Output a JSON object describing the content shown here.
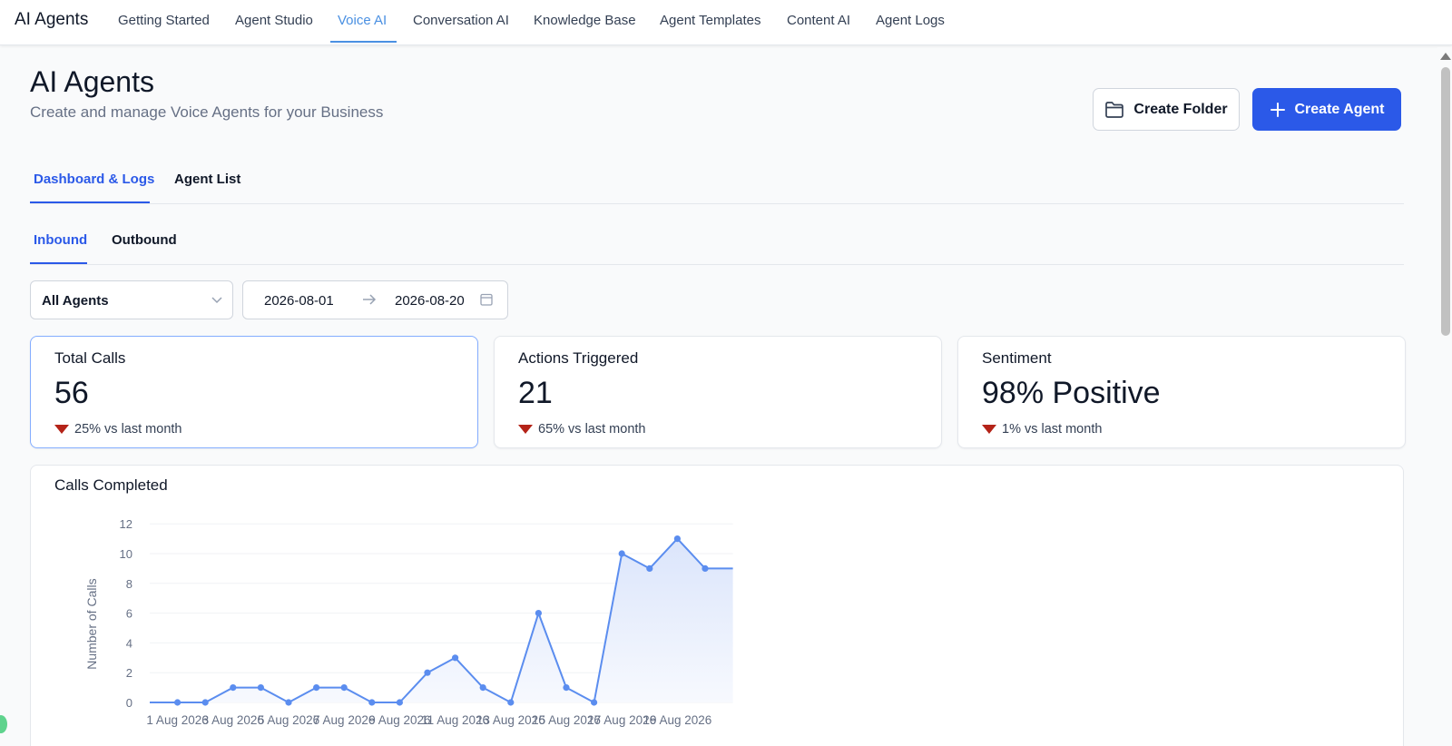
{
  "nav": {
    "brand": "AI Agents",
    "items": [
      {
        "label": "Getting Started",
        "active": false
      },
      {
        "label": "Agent Studio",
        "active": false
      },
      {
        "label": "Voice AI",
        "active": true
      },
      {
        "label": "Conversation AI",
        "active": false
      },
      {
        "label": "Knowledge Base",
        "active": false
      },
      {
        "label": "Agent Templates",
        "active": false
      },
      {
        "label": "Content AI",
        "active": false
      },
      {
        "label": "Agent Logs",
        "active": false
      }
    ]
  },
  "header": {
    "title": "AI Agents",
    "subtitle": "Create and manage Voice Agents for your Business",
    "create_folder_label": "Create Folder",
    "create_agent_label": "Create Agent"
  },
  "tabs": {
    "primary": [
      {
        "label": "Dashboard & Logs",
        "active": true
      },
      {
        "label": "Agent List",
        "active": false
      }
    ],
    "secondary": [
      {
        "label": "Inbound",
        "active": true
      },
      {
        "label": "Outbound",
        "active": false
      }
    ]
  },
  "filters": {
    "agent_select": "All Agents",
    "date_start": "2026-08-01",
    "date_end": "2026-08-20"
  },
  "stats": [
    {
      "label": "Total Calls",
      "value": "56",
      "delta": "25% vs last month",
      "trend": "down",
      "selected": true
    },
    {
      "label": "Actions Triggered",
      "value": "21",
      "delta": "65% vs last month",
      "trend": "down",
      "selected": false
    },
    {
      "label": "Sentiment",
      "value": "98% Positive",
      "delta": "1% vs last month",
      "trend": "down",
      "selected": false
    }
  ],
  "colors": {
    "accent": "#2b59e8",
    "nav_active": "#4a90e2",
    "trend_down": "#b42318",
    "series_line": "#5b8def"
  },
  "chart_data": {
    "type": "area",
    "title": "Calls Completed",
    "xlabel": "",
    "ylabel": "Number of Calls",
    "ylim": [
      0,
      12
    ],
    "yticks": [
      0,
      2,
      4,
      6,
      8,
      10,
      12
    ],
    "grid": true,
    "x": [
      "31 Jul 2026",
      "1 Aug 2026",
      "2 Aug 2026",
      "3 Aug 2026",
      "4 Aug 2026",
      "5 Aug 2026",
      "6 Aug 2026",
      "7 Aug 2026",
      "8 Aug 2026",
      "9 Aug 2026",
      "10 Aug 2026",
      "11 Aug 2026",
      "12 Aug 2026",
      "13 Aug 2026",
      "14 Aug 2026",
      "15 Aug 2026",
      "16 Aug 2026",
      "17 Aug 2026",
      "18 Aug 2026",
      "19 Aug 2026",
      "20 Aug 2026",
      "21 Aug 2026"
    ],
    "xtick_labels": [
      "1 Aug 2026",
      "3 Aug 2026",
      "5 Aug 2026",
      "7 Aug 2026",
      "9 Aug 2026",
      "11 Aug 2026",
      "13 Aug 2026",
      "15 Aug 2026",
      "17 Aug 2026",
      "19 Aug 2026"
    ],
    "series": [
      {
        "values": [
          0,
          0,
          0,
          1,
          1,
          0,
          1,
          1,
          0,
          0,
          2,
          3,
          1,
          0,
          6,
          1,
          0,
          10,
          9,
          11,
          9,
          9
        ]
      }
    ],
    "markers_hidden_at": [
      0,
      21
    ]
  }
}
